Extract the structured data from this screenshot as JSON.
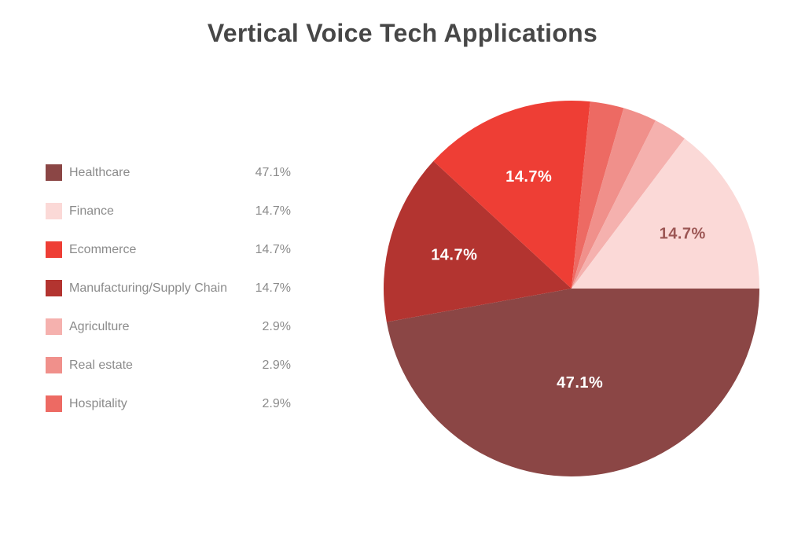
{
  "title": "Vertical Voice Tech Applications",
  "legend": {
    "items": [
      {
        "label": "Healthcare",
        "value": "47.1%",
        "color": "#8b4645"
      },
      {
        "label": "Finance",
        "value": "14.7%",
        "color": "#fbd9d7"
      },
      {
        "label": "Ecommerce",
        "value": "14.7%",
        "color": "#ee3e35"
      },
      {
        "label": "Manufacturing/Supply Chain",
        "value": "14.7%",
        "color": "#b33430"
      },
      {
        "label": "Agriculture",
        "value": "2.9%",
        "color": "#f5b1ae"
      },
      {
        "label": "Real estate",
        "value": "2.9%",
        "color": "#f0908b"
      },
      {
        "label": "Hospitality",
        "value": "2.9%",
        "color": "#ed6a63"
      }
    ]
  },
  "chart_data": {
    "type": "pie",
    "title": "Vertical Voice Tech Applications",
    "legend_position": "left",
    "slices": [
      {
        "name": "Healthcare",
        "value": 47.1,
        "label": "47.1%",
        "color": "#8b4645",
        "label_color": "#ffffff",
        "show_label": true,
        "label_r": 0.5
      },
      {
        "name": "Finance",
        "value": 14.7,
        "label": "14.7%",
        "color": "#fbd9d7",
        "label_color": "#9c5654",
        "show_label": true,
        "label_r": 0.66
      },
      {
        "name": "Ecommerce",
        "value": 14.7,
        "label": "14.7%",
        "color": "#ee3e35",
        "label_color": "#ffffff",
        "show_label": true,
        "label_r": 0.64
      },
      {
        "name": "Manufacturing/Supply Chain",
        "value": 14.7,
        "label": "14.7%",
        "color": "#b33430",
        "label_color": "#ffffff",
        "show_label": true,
        "label_r": 0.65
      },
      {
        "name": "Agriculture",
        "value": 2.9,
        "label": "2.9%",
        "color": "#f5b1ae",
        "label_color": "#9c5654",
        "show_label": false,
        "label_r": 0.8
      },
      {
        "name": "Real estate",
        "value": 2.9,
        "label": "2.9%",
        "color": "#f0908b",
        "label_color": "#ffffff",
        "show_label": false,
        "label_r": 0.8
      },
      {
        "name": "Hospitality",
        "value": 2.9,
        "label": "2.9%",
        "color": "#ed6a63",
        "label_color": "#ffffff",
        "show_label": false,
        "label_r": 0.8
      }
    ],
    "draw_order": [
      0,
      3,
      2,
      6,
      5,
      4,
      1
    ],
    "start_angle_deg": 0,
    "direction": "clockwise"
  }
}
